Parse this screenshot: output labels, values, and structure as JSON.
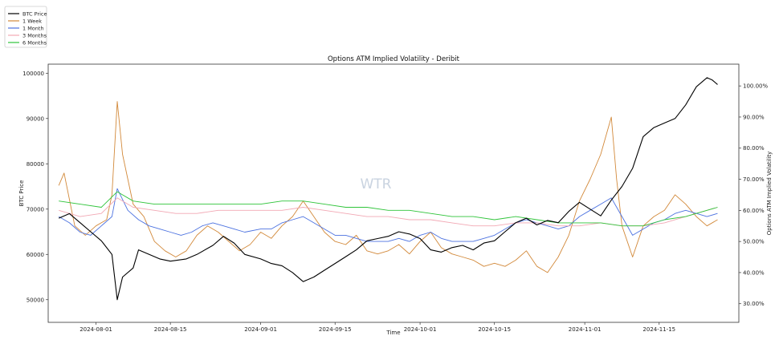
{
  "chart_data": {
    "type": "line",
    "title": "Options ATM Implied Volatility - Deribit",
    "xlabel": "Time",
    "ylabel_left": "BTC Price",
    "ylabel_right": "Options ATM Implied Volatility",
    "watermark": "WTR",
    "x_range": [
      "2024-07-23",
      "2024-11-30"
    ],
    "left_ylim": [
      45000,
      102000
    ],
    "right_ylim": [
      0.24,
      1.07
    ],
    "x_ticks": [
      "2024-08-01",
      "2024-08-15",
      "2024-09-01",
      "2024-09-15",
      "2024-10-01",
      "2024-10-15",
      "2024-11-01",
      "2024-11-15"
    ],
    "left_ticks": [
      50000,
      60000,
      70000,
      80000,
      90000,
      100000
    ],
    "left_tick_labels": [
      "50000",
      "60000",
      "70000",
      "80000",
      "90000",
      "100000"
    ],
    "right_ticks": [
      0.3,
      0.4,
      0.5,
      0.6,
      0.7,
      0.8,
      0.9,
      1.0
    ],
    "right_tick_labels": [
      "30.00%",
      "40.00%",
      "50.00%",
      "60.00%",
      "70.00%",
      "80.00%",
      "90.00%",
      "100.00%"
    ],
    "legend_position": "top-left",
    "grid": false,
    "series": [
      {
        "name": "BTC Price",
        "axis": "left",
        "color": "#000000",
        "points": [
          [
            "2024-07-25",
            68000
          ],
          [
            "2024-07-27",
            69000
          ],
          [
            "2024-07-29",
            67000
          ],
          [
            "2024-07-31",
            65000
          ],
          [
            "2024-08-02",
            63000
          ],
          [
            "2024-08-04",
            60000
          ],
          [
            "2024-08-05",
            50000
          ],
          [
            "2024-08-06",
            55000
          ],
          [
            "2024-08-08",
            57000
          ],
          [
            "2024-08-09",
            61000
          ],
          [
            "2024-08-11",
            60000
          ],
          [
            "2024-08-13",
            59000
          ],
          [
            "2024-08-15",
            58500
          ],
          [
            "2024-08-18",
            59000
          ],
          [
            "2024-08-20",
            60000
          ],
          [
            "2024-08-23",
            62000
          ],
          [
            "2024-08-25",
            64000
          ],
          [
            "2024-08-27",
            62500
          ],
          [
            "2024-08-29",
            60000
          ],
          [
            "2024-09-01",
            59000
          ],
          [
            "2024-09-03",
            58000
          ],
          [
            "2024-09-05",
            57500
          ],
          [
            "2024-09-07",
            56000
          ],
          [
            "2024-09-09",
            54000
          ],
          [
            "2024-09-11",
            55000
          ],
          [
            "2024-09-13",
            56500
          ],
          [
            "2024-09-15",
            58000
          ],
          [
            "2024-09-17",
            59500
          ],
          [
            "2024-09-19",
            61000
          ],
          [
            "2024-09-21",
            63000
          ],
          [
            "2024-09-23",
            63500
          ],
          [
            "2024-09-25",
            64000
          ],
          [
            "2024-09-27",
            65000
          ],
          [
            "2024-09-29",
            64500
          ],
          [
            "2024-10-01",
            63500
          ],
          [
            "2024-10-03",
            61000
          ],
          [
            "2024-10-05",
            60500
          ],
          [
            "2024-10-07",
            61500
          ],
          [
            "2024-10-09",
            62000
          ],
          [
            "2024-10-11",
            61000
          ],
          [
            "2024-10-13",
            62500
          ],
          [
            "2024-10-15",
            63000
          ],
          [
            "2024-10-17",
            65000
          ],
          [
            "2024-10-19",
            67000
          ],
          [
            "2024-10-21",
            68000
          ],
          [
            "2024-10-23",
            66500
          ],
          [
            "2024-10-25",
            67500
          ],
          [
            "2024-10-27",
            67000
          ],
          [
            "2024-10-29",
            69500
          ],
          [
            "2024-10-31",
            71500
          ],
          [
            "2024-11-02",
            70000
          ],
          [
            "2024-11-04",
            68500
          ],
          [
            "2024-11-06",
            72000
          ],
          [
            "2024-11-08",
            75000
          ],
          [
            "2024-11-10",
            79000
          ],
          [
            "2024-11-12",
            86000
          ],
          [
            "2024-11-14",
            88000
          ],
          [
            "2024-11-16",
            89000
          ],
          [
            "2024-11-18",
            90000
          ],
          [
            "2024-11-20",
            93000
          ],
          [
            "2024-11-22",
            97000
          ],
          [
            "2024-11-24",
            99000
          ],
          [
            "2024-11-25",
            98500
          ],
          [
            "2024-11-26",
            97500
          ]
        ]
      },
      {
        "name": "1 Week",
        "axis": "right",
        "color": "#d2893a",
        "points": [
          [
            "2024-07-25",
            0.68
          ],
          [
            "2024-07-26",
            0.72
          ],
          [
            "2024-07-28",
            0.55
          ],
          [
            "2024-07-30",
            0.52
          ],
          [
            "2024-08-01",
            0.55
          ],
          [
            "2024-08-03",
            0.57
          ],
          [
            "2024-08-04",
            0.65
          ],
          [
            "2024-08-05",
            0.95
          ],
          [
            "2024-08-06",
            0.78
          ],
          [
            "2024-08-08",
            0.62
          ],
          [
            "2024-08-10",
            0.58
          ],
          [
            "2024-08-12",
            0.5
          ],
          [
            "2024-08-14",
            0.47
          ],
          [
            "2024-08-16",
            0.45
          ],
          [
            "2024-08-18",
            0.47
          ],
          [
            "2024-08-20",
            0.52
          ],
          [
            "2024-08-22",
            0.55
          ],
          [
            "2024-08-24",
            0.53
          ],
          [
            "2024-08-26",
            0.5
          ],
          [
            "2024-08-28",
            0.47
          ],
          [
            "2024-08-30",
            0.49
          ],
          [
            "2024-09-01",
            0.53
          ],
          [
            "2024-09-03",
            0.51
          ],
          [
            "2024-09-05",
            0.55
          ],
          [
            "2024-09-07",
            0.58
          ],
          [
            "2024-09-09",
            0.63
          ],
          [
            "2024-09-11",
            0.58
          ],
          [
            "2024-09-13",
            0.53
          ],
          [
            "2024-09-15",
            0.5
          ],
          [
            "2024-09-17",
            0.49
          ],
          [
            "2024-09-19",
            0.52
          ],
          [
            "2024-09-21",
            0.47
          ],
          [
            "2024-09-23",
            0.46
          ],
          [
            "2024-09-25",
            0.47
          ],
          [
            "2024-09-27",
            0.49
          ],
          [
            "2024-09-29",
            0.46
          ],
          [
            "2024-10-01",
            0.5
          ],
          [
            "2024-10-03",
            0.53
          ],
          [
            "2024-10-05",
            0.48
          ],
          [
            "2024-10-07",
            0.46
          ],
          [
            "2024-10-09",
            0.45
          ],
          [
            "2024-10-11",
            0.44
          ],
          [
            "2024-10-13",
            0.42
          ],
          [
            "2024-10-15",
            0.43
          ],
          [
            "2024-10-17",
            0.42
          ],
          [
            "2024-10-19",
            0.44
          ],
          [
            "2024-10-21",
            0.47
          ],
          [
            "2024-10-23",
            0.42
          ],
          [
            "2024-10-25",
            0.4
          ],
          [
            "2024-10-27",
            0.45
          ],
          [
            "2024-10-29",
            0.52
          ],
          [
            "2024-10-31",
            0.63
          ],
          [
            "2024-11-02",
            0.7
          ],
          [
            "2024-11-04",
            0.78
          ],
          [
            "2024-11-06",
            0.9
          ],
          [
            "2024-11-07",
            0.7
          ],
          [
            "2024-11-08",
            0.55
          ],
          [
            "2024-11-10",
            0.45
          ],
          [
            "2024-11-12",
            0.55
          ],
          [
            "2024-11-14",
            0.58
          ],
          [
            "2024-11-16",
            0.6
          ],
          [
            "2024-11-18",
            0.65
          ],
          [
            "2024-11-20",
            0.62
          ],
          [
            "2024-11-22",
            0.58
          ],
          [
            "2024-11-24",
            0.55
          ],
          [
            "2024-11-26",
            0.57
          ]
        ]
      },
      {
        "name": "1 Month",
        "axis": "right",
        "color": "#4c72e0",
        "points": [
          [
            "2024-07-25",
            0.58
          ],
          [
            "2024-07-27",
            0.56
          ],
          [
            "2024-07-29",
            0.53
          ],
          [
            "2024-07-31",
            0.52
          ],
          [
            "2024-08-02",
            0.55
          ],
          [
            "2024-08-04",
            0.58
          ],
          [
            "2024-08-05",
            0.67
          ],
          [
            "2024-08-07",
            0.6
          ],
          [
            "2024-08-09",
            0.57
          ],
          [
            "2024-08-11",
            0.55
          ],
          [
            "2024-08-13",
            0.54
          ],
          [
            "2024-08-15",
            0.53
          ],
          [
            "2024-08-17",
            0.52
          ],
          [
            "2024-08-19",
            0.53
          ],
          [
            "2024-08-21",
            0.55
          ],
          [
            "2024-08-23",
            0.56
          ],
          [
            "2024-08-25",
            0.55
          ],
          [
            "2024-08-27",
            0.54
          ],
          [
            "2024-08-29",
            0.53
          ],
          [
            "2024-09-01",
            0.54
          ],
          [
            "2024-09-03",
            0.54
          ],
          [
            "2024-09-05",
            0.56
          ],
          [
            "2024-09-07",
            0.57
          ],
          [
            "2024-09-09",
            0.58
          ],
          [
            "2024-09-11",
            0.56
          ],
          [
            "2024-09-13",
            0.54
          ],
          [
            "2024-09-15",
            0.52
          ],
          [
            "2024-09-17",
            0.52
          ],
          [
            "2024-09-19",
            0.51
          ],
          [
            "2024-09-21",
            0.5
          ],
          [
            "2024-09-23",
            0.5
          ],
          [
            "2024-09-25",
            0.5
          ],
          [
            "2024-09-27",
            0.51
          ],
          [
            "2024-09-29",
            0.5
          ],
          [
            "2024-10-01",
            0.52
          ],
          [
            "2024-10-03",
            0.53
          ],
          [
            "2024-10-05",
            0.51
          ],
          [
            "2024-10-07",
            0.5
          ],
          [
            "2024-10-09",
            0.5
          ],
          [
            "2024-10-11",
            0.5
          ],
          [
            "2024-10-13",
            0.51
          ],
          [
            "2024-10-15",
            0.52
          ],
          [
            "2024-10-17",
            0.54
          ],
          [
            "2024-10-19",
            0.56
          ],
          [
            "2024-10-21",
            0.57
          ],
          [
            "2024-10-23",
            0.56
          ],
          [
            "2024-10-25",
            0.55
          ],
          [
            "2024-10-27",
            0.54
          ],
          [
            "2024-10-29",
            0.55
          ],
          [
            "2024-10-31",
            0.58
          ],
          [
            "2024-11-02",
            0.6
          ],
          [
            "2024-11-04",
            0.62
          ],
          [
            "2024-11-06",
            0.64
          ],
          [
            "2024-11-08",
            0.58
          ],
          [
            "2024-11-10",
            0.52
          ],
          [
            "2024-11-12",
            0.54
          ],
          [
            "2024-11-14",
            0.56
          ],
          [
            "2024-11-16",
            0.57
          ],
          [
            "2024-11-18",
            0.59
          ],
          [
            "2024-11-20",
            0.6
          ],
          [
            "2024-11-22",
            0.59
          ],
          [
            "2024-11-24",
            0.58
          ],
          [
            "2024-11-26",
            0.59
          ]
        ]
      },
      {
        "name": "3 Months",
        "axis": "right",
        "color": "#f2a8b4",
        "points": [
          [
            "2024-07-25",
            0.6
          ],
          [
            "2024-07-29",
            0.58
          ],
          [
            "2024-08-02",
            0.59
          ],
          [
            "2024-08-05",
            0.64
          ],
          [
            "2024-08-08",
            0.61
          ],
          [
            "2024-08-12",
            0.6
          ],
          [
            "2024-08-16",
            0.59
          ],
          [
            "2024-08-20",
            0.59
          ],
          [
            "2024-08-24",
            0.6
          ],
          [
            "2024-08-28",
            0.6
          ],
          [
            "2024-09-01",
            0.6
          ],
          [
            "2024-09-05",
            0.6
          ],
          [
            "2024-09-09",
            0.61
          ],
          [
            "2024-09-13",
            0.6
          ],
          [
            "2024-09-17",
            0.59
          ],
          [
            "2024-09-21",
            0.58
          ],
          [
            "2024-09-25",
            0.58
          ],
          [
            "2024-09-29",
            0.57
          ],
          [
            "2024-10-03",
            0.57
          ],
          [
            "2024-10-07",
            0.56
          ],
          [
            "2024-10-11",
            0.55
          ],
          [
            "2024-10-15",
            0.55
          ],
          [
            "2024-10-19",
            0.56
          ],
          [
            "2024-10-23",
            0.56
          ],
          [
            "2024-10-27",
            0.55
          ],
          [
            "2024-10-31",
            0.55
          ],
          [
            "2024-11-04",
            0.56
          ],
          [
            "2024-11-08",
            0.55
          ],
          [
            "2024-11-12",
            0.55
          ],
          [
            "2024-11-16",
            0.56
          ],
          [
            "2024-11-20",
            0.58
          ],
          [
            "2024-11-24",
            0.6
          ],
          [
            "2024-11-26",
            0.61
          ]
        ]
      },
      {
        "name": "6 Months",
        "axis": "right",
        "color": "#2fc43a",
        "points": [
          [
            "2024-07-25",
            0.63
          ],
          [
            "2024-07-29",
            0.62
          ],
          [
            "2024-08-02",
            0.61
          ],
          [
            "2024-08-05",
            0.66
          ],
          [
            "2024-08-08",
            0.63
          ],
          [
            "2024-08-12",
            0.62
          ],
          [
            "2024-08-16",
            0.62
          ],
          [
            "2024-08-20",
            0.62
          ],
          [
            "2024-08-24",
            0.62
          ],
          [
            "2024-08-28",
            0.62
          ],
          [
            "2024-09-01",
            0.62
          ],
          [
            "2024-09-05",
            0.63
          ],
          [
            "2024-09-09",
            0.63
          ],
          [
            "2024-09-13",
            0.62
          ],
          [
            "2024-09-17",
            0.61
          ],
          [
            "2024-09-21",
            0.61
          ],
          [
            "2024-09-25",
            0.6
          ],
          [
            "2024-09-29",
            0.6
          ],
          [
            "2024-10-03",
            0.59
          ],
          [
            "2024-10-07",
            0.58
          ],
          [
            "2024-10-11",
            0.58
          ],
          [
            "2024-10-15",
            0.57
          ],
          [
            "2024-10-19",
            0.58
          ],
          [
            "2024-10-23",
            0.57
          ],
          [
            "2024-10-27",
            0.56
          ],
          [
            "2024-10-31",
            0.56
          ],
          [
            "2024-11-04",
            0.56
          ],
          [
            "2024-11-08",
            0.55
          ],
          [
            "2024-11-12",
            0.55
          ],
          [
            "2024-11-16",
            0.57
          ],
          [
            "2024-11-20",
            0.58
          ],
          [
            "2024-11-24",
            0.6
          ],
          [
            "2024-11-26",
            0.61
          ]
        ]
      }
    ]
  }
}
